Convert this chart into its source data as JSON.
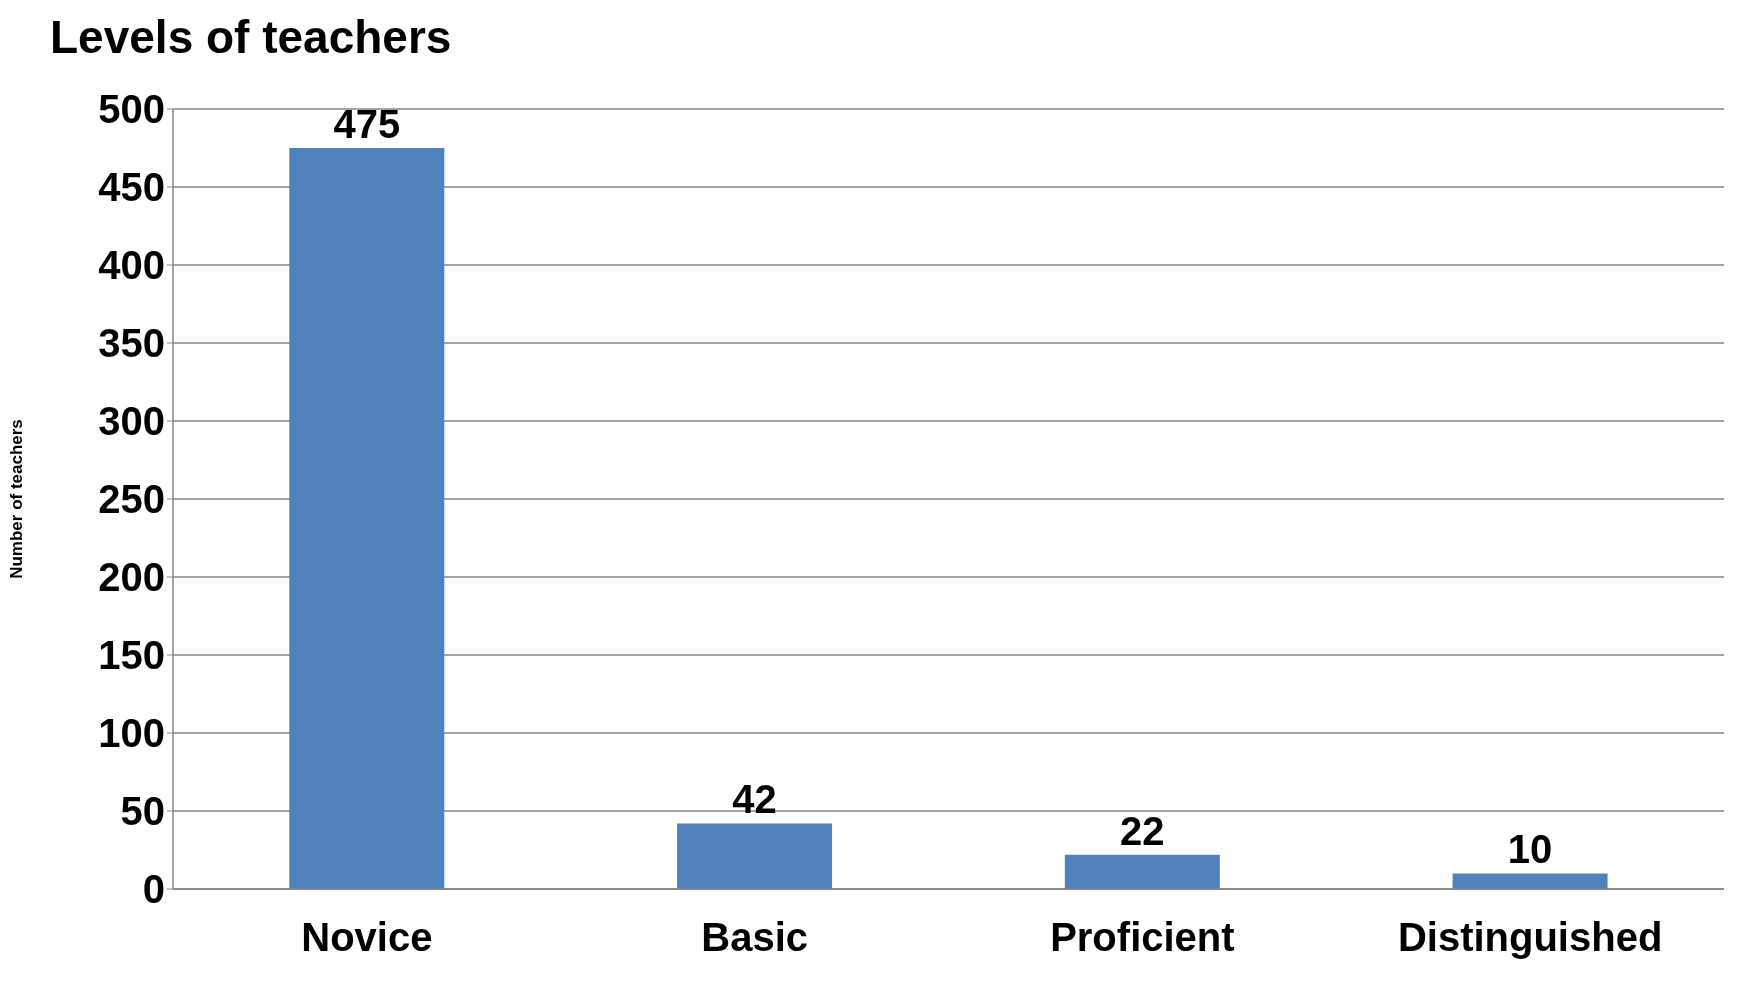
{
  "chart_data": {
    "type": "bar",
    "title": "Levels of teachers",
    "ylabel": "Number of teachers",
    "categories": [
      "Novice",
      "Basic",
      "Proficient",
      "Distinguished"
    ],
    "values": [
      475,
      42,
      22,
      10
    ],
    "color": "#4f81bd",
    "ylim": [
      0,
      500
    ],
    "yticks": [
      0,
      50,
      100,
      150,
      200,
      250,
      300,
      350,
      400,
      450,
      500
    ],
    "grid": "y",
    "data_labels": true
  }
}
